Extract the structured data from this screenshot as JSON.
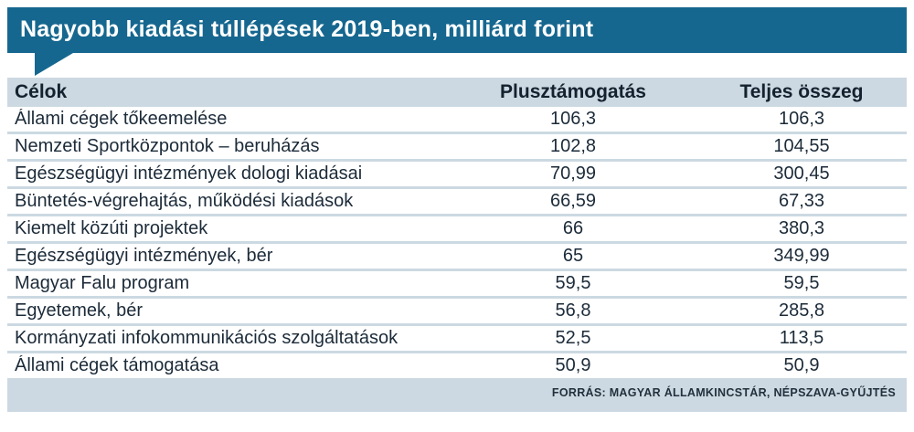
{
  "title": "Nagyobb kiadási túllépések 2019-ben, milliárd forint",
  "source_note": "FORRÁS: MAGYAR ÁLLAMKINCSTÁR, NÉPSZAVA-GYŰJTÉS",
  "colors": {
    "header_bg": "#16678f",
    "table_bg": "#ccd9e2",
    "row_bg": "#ffffff",
    "text": "#1c2b39"
  },
  "chart_data": {
    "type": "table",
    "title": "Nagyobb kiadási túllépések 2019-ben, milliárd forint",
    "unit": "milliárd forint",
    "columns": [
      "Célok",
      "Plusztámogatás",
      "Teljes összeg"
    ],
    "rows": [
      [
        "Állami cégek tőkeemelése",
        "106,3",
        "106,3"
      ],
      [
        "Nemzeti Sportközpontok – beruházás",
        "102,8",
        "104,55"
      ],
      [
        "Egészségügyi intézmények dologi kiadásai",
        "70,99",
        "300,45"
      ],
      [
        "Büntetés-végrehajtás, működési kiadások",
        "66,59",
        "67,33"
      ],
      [
        "Kiemelt közúti projektek",
        "66",
        "380,3"
      ],
      [
        "Egészségügyi intézmények, bér",
        "65",
        "349,99"
      ],
      [
        "Magyar Falu program",
        "59,5",
        "59,5"
      ],
      [
        "Egyetemek, bér",
        "56,8",
        "285,8"
      ],
      [
        "Kormányzati infokommunikációs szolgáltatások",
        "52,5",
        "113,5"
      ],
      [
        "Állami cégek támogatása",
        "50,9",
        "50,9"
      ]
    ]
  }
}
